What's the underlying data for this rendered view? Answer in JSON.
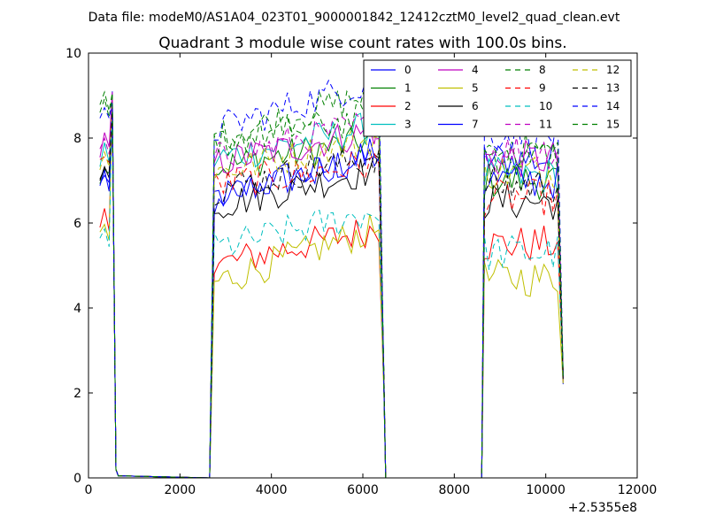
{
  "figure": {
    "suptitle": "Data file: modeM0/AS1A04_023T01_9000001842_12412cztM0_level2_quad_clean.evt"
  },
  "chart_data": {
    "type": "line",
    "title": "Quadrant 3 module wise count rates with 100.0s bins.",
    "xlabel": "",
    "ylabel": "",
    "x_offset_label": "+2.5355e8",
    "xlim": [
      0,
      12000
    ],
    "ylim": [
      0,
      10
    ],
    "xticks": [
      0,
      2000,
      4000,
      6000,
      8000,
      10000,
      12000
    ],
    "yticks": [
      0,
      2,
      4,
      6,
      8,
      10
    ],
    "grid": false,
    "legend_placement": "top-right",
    "legend_columns": 4,
    "time_segments": [
      {
        "x_start": 250,
        "x_end": 650,
        "edge_x": [
          600,
          700
        ],
        "plateau_x": [
          250,
          550
        ]
      },
      {
        "x_start": 2650,
        "x_end": 6500,
        "edge_x": [
          2750,
          6450
        ]
      },
      {
        "x_start": 8600,
        "x_end": 10400,
        "edge_x": [
          8650,
          10350
        ]
      }
    ],
    "series": [
      {
        "name": "0",
        "color": "#0000ff",
        "dash": "solid",
        "levels": [
          7.0,
          6.6,
          7.6,
          7.5
        ]
      },
      {
        "name": "1",
        "color": "#008000",
        "dash": "solid",
        "levels": [
          7.2,
          7.3,
          8.0,
          7.0
        ]
      },
      {
        "name": "2",
        "color": "#ff0000",
        "dash": "solid",
        "levels": [
          6.0,
          5.0,
          5.9,
          5.5
        ]
      },
      {
        "name": "3",
        "color": "#00bfbf",
        "dash": "solid",
        "levels": [
          7.6,
          7.5,
          8.3,
          7.1
        ]
      },
      {
        "name": "4",
        "color": "#bf00bf",
        "dash": "solid",
        "levels": [
          7.8,
          7.4,
          8.2,
          7.5
        ]
      },
      {
        "name": "5",
        "color": "#bfbf00",
        "dash": "solid",
        "levels": [
          5.7,
          4.6,
          5.9,
          4.7
        ]
      },
      {
        "name": "6",
        "color": "#000000",
        "dash": "solid",
        "levels": [
          7.1,
          6.4,
          7.3,
          6.5
        ]
      },
      {
        "name": "7",
        "color": "#0000ff",
        "dash": "solid",
        "levels": [
          6.9,
          6.5,
          7.7,
          7.0
        ]
      },
      {
        "name": "8",
        "color": "#008000",
        "dash": "dashed",
        "levels": [
          8.6,
          8.0,
          9.1,
          7.6
        ]
      },
      {
        "name": "9",
        "color": "#ff0000",
        "dash": "dashed",
        "levels": [
          7.5,
          6.9,
          7.4,
          6.6
        ]
      },
      {
        "name": "10",
        "color": "#00bfbf",
        "dash": "dashed",
        "levels": [
          5.6,
          5.4,
          6.3,
          5.3
        ]
      },
      {
        "name": "11",
        "color": "#bf00bf",
        "dash": "dashed",
        "levels": [
          7.7,
          7.5,
          8.4,
          7.7
        ]
      },
      {
        "name": "12",
        "color": "#bfbf00",
        "dash": "dashed",
        "levels": [
          7.4,
          7.2,
          8.0,
          7.2
        ]
      },
      {
        "name": "13",
        "color": "#000000",
        "dash": "dashed",
        "levels": [
          7.2,
          6.8,
          7.6,
          6.9
        ]
      },
      {
        "name": "14",
        "color": "#0000ff",
        "dash": "dashed",
        "levels": [
          8.4,
          8.2,
          9.4,
          8.1
        ]
      },
      {
        "name": "15",
        "color": "#008000",
        "dash": "dashed",
        "levels": [
          8.7,
          7.9,
          8.5,
          7.7
        ]
      }
    ],
    "peak_value": 9.0,
    "segment_drop_value": 2.2
  }
}
